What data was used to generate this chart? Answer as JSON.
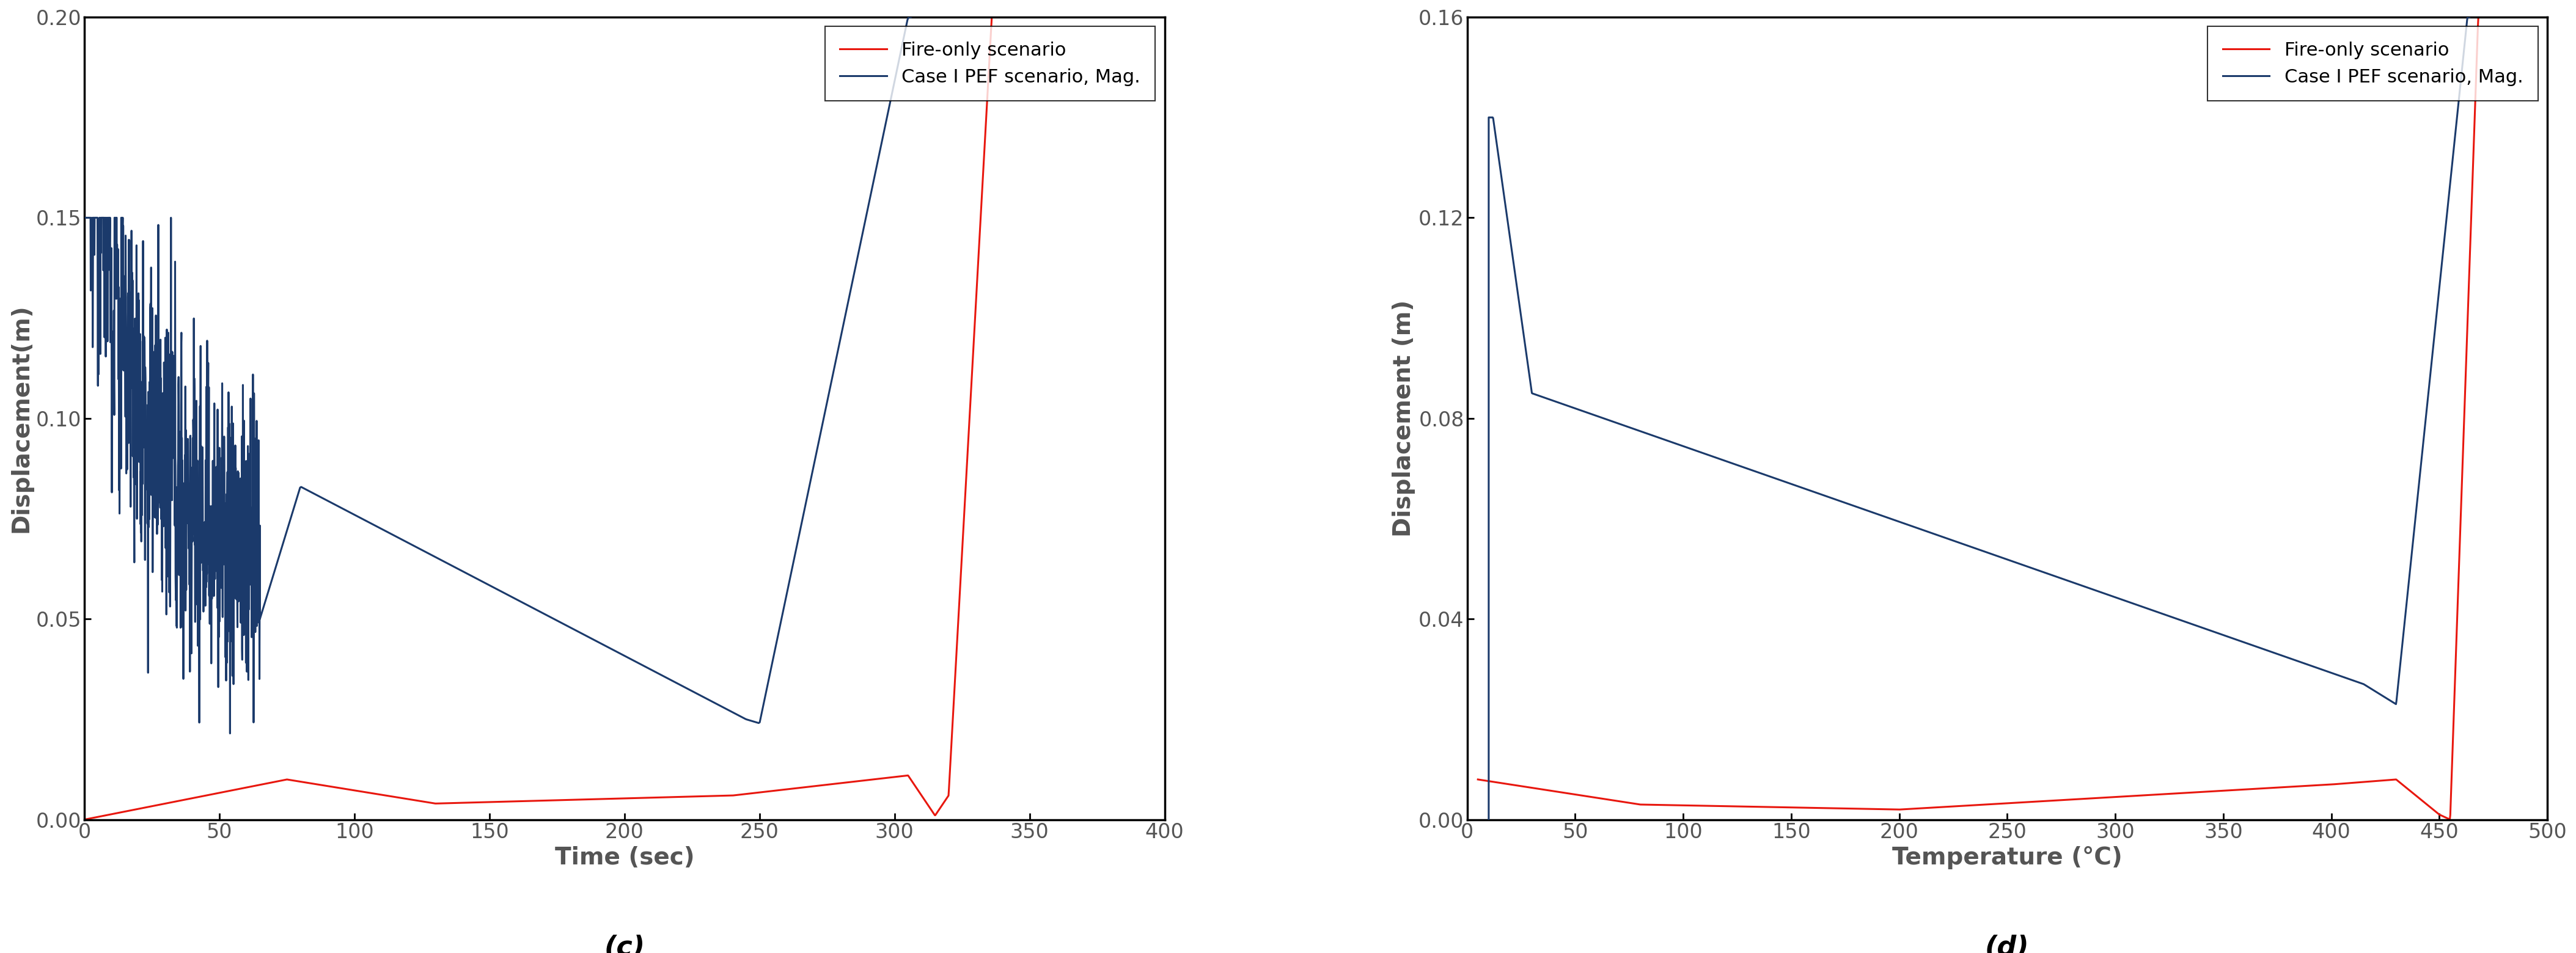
{
  "left_plot": {
    "xlabel": "Time (sec)",
    "ylabel": "Displacement(m)",
    "xlim": [
      0,
      400
    ],
    "ylim": [
      0,
      0.2
    ],
    "xticks": [
      0,
      50,
      100,
      150,
      200,
      250,
      300,
      350,
      400
    ],
    "yticks": [
      0.0,
      0.05,
      0.1,
      0.15,
      0.2
    ],
    "label_c": "(c)",
    "legend_fire": "Fire-only scenario",
    "legend_pef": "Case I PEF scenario, Mag.",
    "fire_color": "#e8170e",
    "pef_color": "#1b3a6b",
    "linewidth": 2.2
  },
  "right_plot": {
    "xlabel": "Temperature (°C)",
    "ylabel": "Displacement (m)",
    "xlim": [
      0,
      500
    ],
    "ylim": [
      0,
      0.16
    ],
    "xticks": [
      0,
      50,
      100,
      150,
      200,
      250,
      300,
      350,
      400,
      450,
      500
    ],
    "yticks": [
      0.0,
      0.04,
      0.08,
      0.12,
      0.16
    ],
    "label_d": "(d)",
    "legend_fire": "Fire-only scenario",
    "legend_pef": "Case I PEF scenario, Mag.",
    "fire_color": "#e8170e",
    "pef_color": "#1b3a6b",
    "linewidth": 2.2
  },
  "tick_color": "#555555",
  "label_color": "#555555",
  "axis_color": "#000000",
  "background_color": "#ffffff",
  "label_fontsize": 28,
  "tick_fontsize": 24,
  "legend_fontsize": 22,
  "sublabel_fontsize": 32
}
